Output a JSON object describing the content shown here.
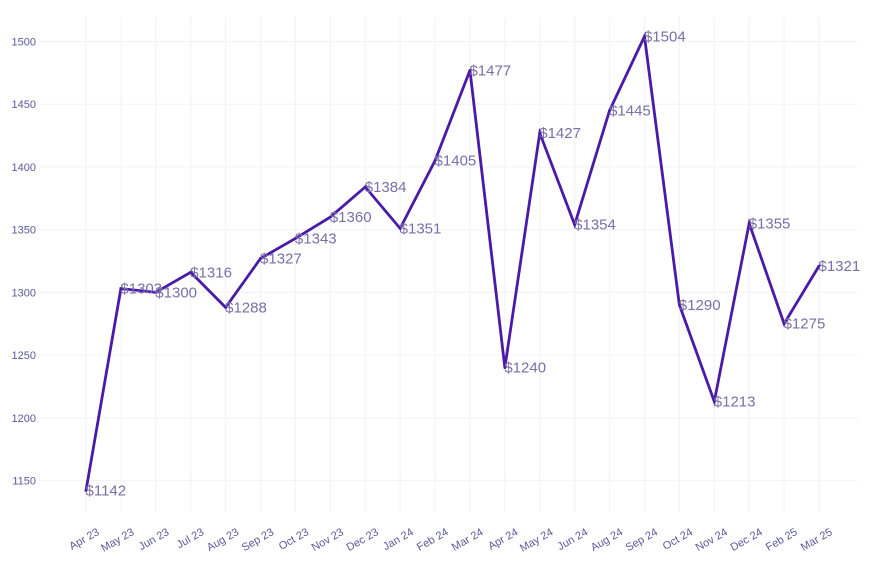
{
  "chart_data": {
    "type": "line",
    "title": "",
    "xlabel": "",
    "ylabel": "",
    "categories": [
      "Apr 23",
      "May 23",
      "Jun 23",
      "Jul 23",
      "Aug 23",
      "Sep 23",
      "Oct 23",
      "Nov 23",
      "Dec 23",
      "Jan 24",
      "Feb 24",
      "Mar 24",
      "Apr 24",
      "May 24",
      "Jun 24",
      "Aug 24",
      "Sep 24",
      "Oct 24",
      "Nov 24",
      "Dec 24",
      "Feb 25",
      "Mar 25"
    ],
    "series": [
      {
        "values": [
          1142,
          1303,
          1300,
          1316,
          1288,
          1327,
          1343,
          1360,
          1384,
          1351,
          1405,
          1477,
          1240,
          1427,
          1354,
          1445,
          1504,
          1290,
          1213,
          1355,
          1275,
          1321
        ],
        "color": "#4a1aa8"
      }
    ],
    "data_labels": [
      "$1142",
      "$1303",
      "$1300",
      "$1316",
      "$1288",
      "$1327",
      "$1343",
      "$1360",
      "$1384",
      "$1351",
      "$1405",
      "$1477",
      "$1240",
      "$1427",
      "$1354",
      "$1445",
      "$1504",
      "$1290",
      "$1213",
      "$1355",
      "$1275",
      "$1321"
    ],
    "yticks": [
      "1150",
      "1200",
      "1250",
      "1300",
      "1350",
      "1400",
      "1450",
      "1500"
    ],
    "ytick_values": [
      1150,
      1200,
      1250,
      1300,
      1350,
      1400,
      1450,
      1500
    ],
    "ylim": [
      1126,
      1524
    ],
    "grid": true,
    "legend": false,
    "colors": {
      "line": "#4a1aa8",
      "label": "#7a6fa8",
      "tick": "#5a5a9a",
      "grid": "#f4f4f8"
    }
  }
}
